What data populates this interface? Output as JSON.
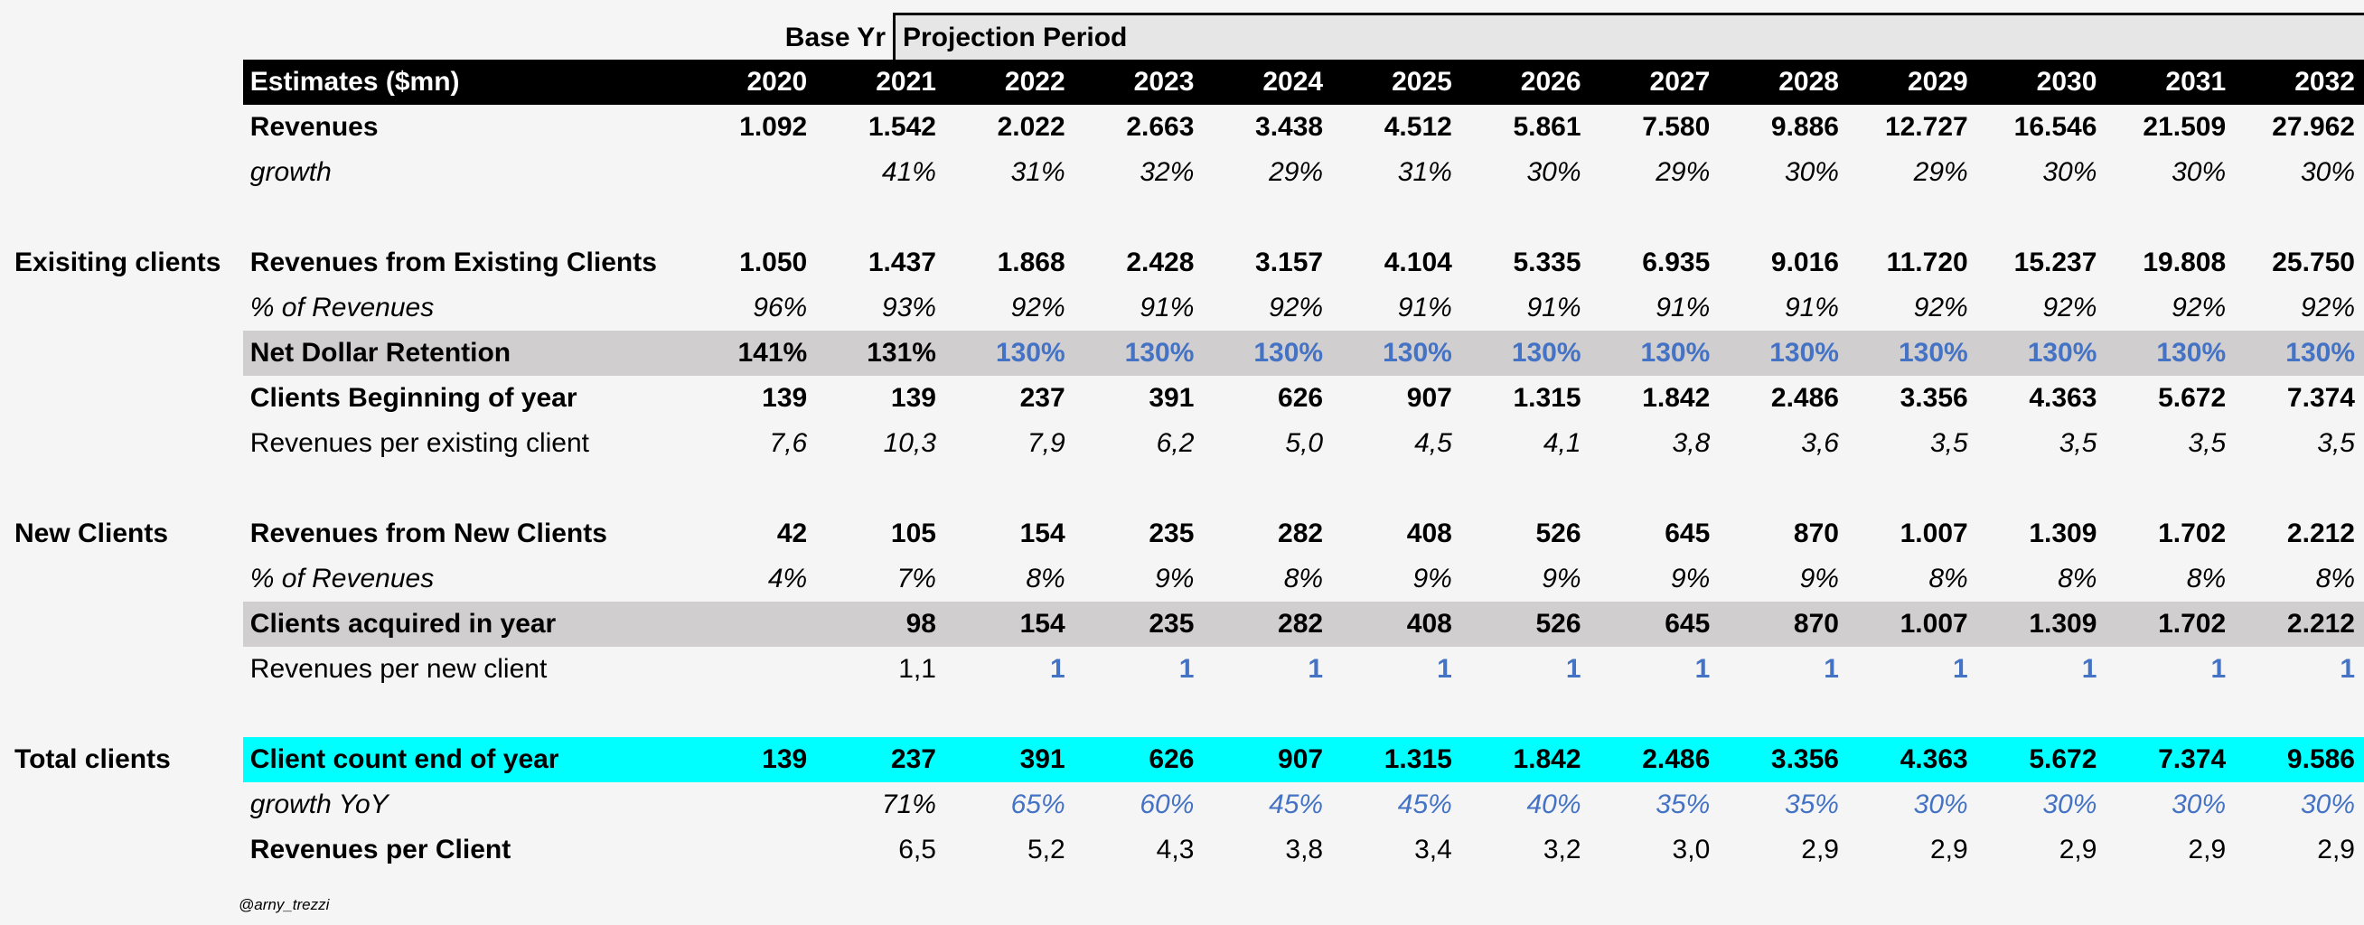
{
  "header": {
    "base_label": "Base Yr",
    "projection_label": "Projection Period"
  },
  "table": {
    "title": "Estimates ($mn)",
    "years": [
      "2020",
      "2021",
      "2022",
      "2023",
      "2024",
      "2025",
      "2026",
      "2027",
      "2028",
      "2029",
      "2030",
      "2031",
      "2032"
    ]
  },
  "rows": [
    {
      "kind": "data",
      "section": "",
      "label": "Revenues",
      "bold": true,
      "italic": false,
      "style": "",
      "values": [
        "1.092",
        "1.542",
        "2.022",
        "2.663",
        "3.438",
        "4.512",
        "5.861",
        "7.580",
        "9.886",
        "12.727",
        "16.546",
        "21.509",
        "27.962"
      ]
    },
    {
      "kind": "data",
      "section": "",
      "label": "growth",
      "bold": false,
      "italic": true,
      "style": "",
      "values": [
        "",
        "41%",
        "31%",
        "32%",
        "29%",
        "31%",
        "30%",
        "29%",
        "30%",
        "29%",
        "30%",
        "30%",
        "30%"
      ]
    },
    {
      "kind": "spacer"
    },
    {
      "kind": "data",
      "section": "Exisiting clients",
      "label": "Revenues from Existing Clients",
      "bold": true,
      "italic": false,
      "style": "",
      "values": [
        "1.050",
        "1.437",
        "1.868",
        "2.428",
        "3.157",
        "4.104",
        "5.335",
        "6.935",
        "9.016",
        "11.720",
        "15.237",
        "19.808",
        "25.750"
      ]
    },
    {
      "kind": "data",
      "section": "",
      "label": "% of Revenues",
      "bold": false,
      "italic": true,
      "style": "",
      "values": [
        "96%",
        "93%",
        "92%",
        "91%",
        "92%",
        "91%",
        "91%",
        "91%",
        "91%",
        "92%",
        "92%",
        "92%",
        "92%"
      ]
    },
    {
      "kind": "data",
      "section": "",
      "label": "Net Dollar Retention",
      "bold": true,
      "italic": false,
      "style": "grey",
      "blue_from": 2,
      "values": [
        "141%",
        "131%",
        "130%",
        "130%",
        "130%",
        "130%",
        "130%",
        "130%",
        "130%",
        "130%",
        "130%",
        "130%",
        "130%"
      ]
    },
    {
      "kind": "data",
      "section": "",
      "label": "Clients Beginning of year",
      "bold": true,
      "italic": false,
      "style": "",
      "values": [
        "139",
        "139",
        "237",
        "391",
        "626",
        "907",
        "1.315",
        "1.842",
        "2.486",
        "3.356",
        "4.363",
        "5.672",
        "7.374"
      ]
    },
    {
      "kind": "data",
      "section": "",
      "label": "Revenues per existing client",
      "bold": false,
      "italic": false,
      "values_italic": true,
      "style": "",
      "values": [
        "7,6",
        "10,3",
        "7,9",
        "6,2",
        "5,0",
        "4,5",
        "4,1",
        "3,8",
        "3,6",
        "3,5",
        "3,5",
        "3,5",
        "3,5"
      ]
    },
    {
      "kind": "spacer"
    },
    {
      "kind": "data",
      "section": "New Clients",
      "label": "Revenues from New Clients",
      "bold": true,
      "italic": false,
      "style": "",
      "values": [
        "42",
        "105",
        "154",
        "235",
        "282",
        "408",
        "526",
        "645",
        "870",
        "1.007",
        "1.309",
        "1.702",
        "2.212"
      ]
    },
    {
      "kind": "data",
      "section": "",
      "label": "% of Revenues",
      "bold": false,
      "italic": true,
      "style": "",
      "values": [
        "4%",
        "7%",
        "8%",
        "9%",
        "8%",
        "9%",
        "9%",
        "9%",
        "9%",
        "8%",
        "8%",
        "8%",
        "8%"
      ]
    },
    {
      "kind": "data",
      "section": "",
      "label": "Clients acquired in year",
      "bold": true,
      "italic": false,
      "style": "grey",
      "values": [
        "",
        "98",
        "154",
        "235",
        "282",
        "408",
        "526",
        "645",
        "870",
        "1.007",
        "1.309",
        "1.702",
        "2.212"
      ]
    },
    {
      "kind": "data",
      "section": "",
      "label": "Revenues per new client",
      "bold": false,
      "italic": false,
      "style": "",
      "blue_from": 2,
      "blue_bold": true,
      "values": [
        "",
        "1,1",
        "1",
        "1",
        "1",
        "1",
        "1",
        "1",
        "1",
        "1",
        "1",
        "1",
        "1"
      ]
    },
    {
      "kind": "spacer"
    },
    {
      "kind": "data",
      "section": "Total clients",
      "label": "Client count end of year",
      "bold": true,
      "italic": false,
      "style": "cyan",
      "values": [
        "139",
        "237",
        "391",
        "626",
        "907",
        "1.315",
        "1.842",
        "2.486",
        "3.356",
        "4.363",
        "5.672",
        "7.374",
        "9.586"
      ]
    },
    {
      "kind": "data",
      "section": "",
      "label": "growth YoY",
      "bold": false,
      "italic": true,
      "style": "",
      "blue_from": 2,
      "values": [
        "",
        "71%",
        "65%",
        "60%",
        "45%",
        "45%",
        "40%",
        "35%",
        "35%",
        "30%",
        "30%",
        "30%",
        "30%"
      ]
    },
    {
      "kind": "data",
      "section": "",
      "label": "Revenues per Client",
      "bold": true,
      "italic": false,
      "values_bold": false,
      "style": "",
      "values": [
        "",
        "6,5",
        "5,2",
        "4,3",
        "3,8",
        "3,4",
        "3,2",
        "3,0",
        "2,9",
        "2,9",
        "2,9",
        "2,9",
        "2,9"
      ]
    }
  ],
  "footer": {
    "handle": "@arny_trezzi"
  },
  "colors": {
    "blue_input": "#4472c4",
    "grey_band": "#d0cece",
    "cyan_band": "#00ffff",
    "header_band": "#000000"
  }
}
